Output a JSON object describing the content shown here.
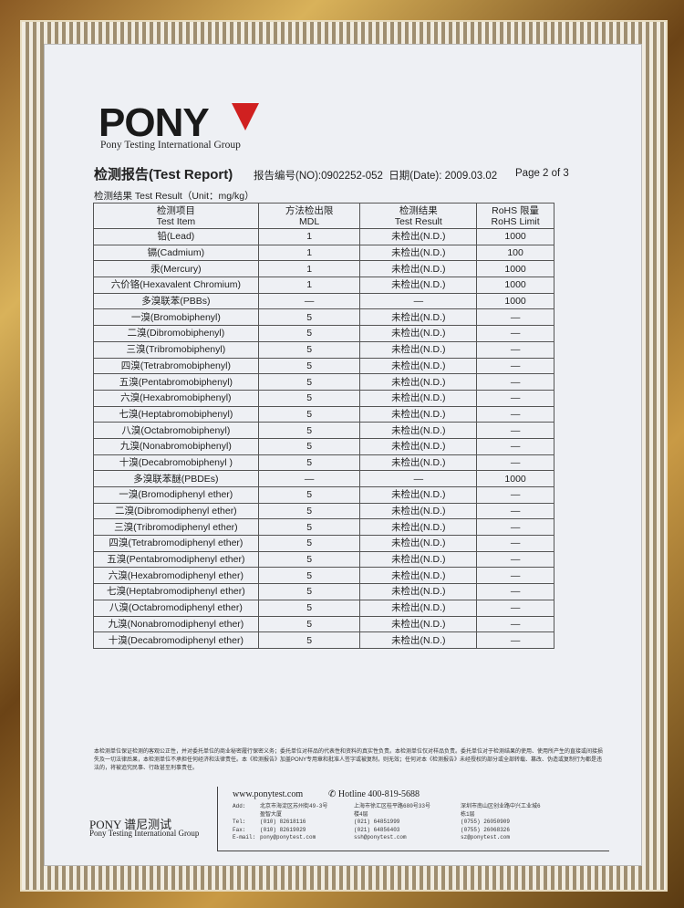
{
  "logo": {
    "text": "PONY",
    "subtitle": "Pony Testing International Group"
  },
  "header": {
    "title": "检测报告(Test Report)",
    "report_no": "报告编号(NO):0902252-052",
    "date": "日期(Date): 2009.03.02",
    "page": "Page 2 of 3"
  },
  "unit_label": "检测结果 Test Result（Unit：mg/kg）",
  "table": {
    "headers": [
      [
        "检测项目",
        "Test Item"
      ],
      [
        "方法检出限",
        "MDL"
      ],
      [
        "检测结果",
        "Test Result"
      ],
      [
        "RoHS 限量",
        "RoHS Limit"
      ]
    ],
    "rows": [
      [
        "铅(Lead)",
        "1",
        "未检出(N.D.)",
        "1000"
      ],
      [
        "镉(Cadmium)",
        "1",
        "未检出(N.D.)",
        "100"
      ],
      [
        "汞(Mercury)",
        "1",
        "未检出(N.D.)",
        "1000"
      ],
      [
        "六价铬(Hexavalent Chromium)",
        "1",
        "未检出(N.D.)",
        "1000"
      ],
      [
        "多溴联苯(PBBs)",
        "—",
        "—",
        "1000"
      ],
      [
        "一溴(Bromobiphenyl)",
        "5",
        "未检出(N.D.)",
        "—"
      ],
      [
        "二溴(Dibromobiphenyl)",
        "5",
        "未检出(N.D.)",
        "—"
      ],
      [
        "三溴(Tribromobiphenyl)",
        "5",
        "未检出(N.D.)",
        "—"
      ],
      [
        "四溴(Tetrabromobiphenyl)",
        "5",
        "未检出(N.D.)",
        "—"
      ],
      [
        "五溴(Pentabromobiphenyl)",
        "5",
        "未检出(N.D.)",
        "—"
      ],
      [
        "六溴(Hexabromobiphenyl)",
        "5",
        "未检出(N.D.)",
        "—"
      ],
      [
        "七溴(Heptabromobiphenyl)",
        "5",
        "未检出(N.D.)",
        "—"
      ],
      [
        "八溴(Octabromobiphenyl)",
        "5",
        "未检出(N.D.)",
        "—"
      ],
      [
        "九溴(Nonabromobiphenyl)",
        "5",
        "未检出(N.D.)",
        "—"
      ],
      [
        "十溴(Decabromobiphenyl )",
        "5",
        "未检出(N.D.)",
        "—"
      ],
      [
        "多溴联苯醚(PBDEs)",
        "—",
        "—",
        "1000"
      ],
      [
        "一溴(Bromodiphenyl ether)",
        "5",
        "未检出(N.D.)",
        "—"
      ],
      [
        "二溴(Dibromodiphenyl ether)",
        "5",
        "未检出(N.D.)",
        "—"
      ],
      [
        "三溴(Tribromodiphenyl ether)",
        "5",
        "未检出(N.D.)",
        "—"
      ],
      [
        "四溴(Tetrabromodiphenyl ether)",
        "5",
        "未检出(N.D.)",
        "—"
      ],
      [
        "五溴(Pentabromodiphenyl ether)",
        "5",
        "未检出(N.D.)",
        "—"
      ],
      [
        "六溴(Hexabromodiphenyl ether)",
        "5",
        "未检出(N.D.)",
        "—"
      ],
      [
        "七溴(Heptabromodiphenyl ether)",
        "5",
        "未检出(N.D.)",
        "—"
      ],
      [
        "八溴(Octabromodiphenyl ether)",
        "5",
        "未检出(N.D.)",
        "—"
      ],
      [
        "九溴(Nonabromodiphenyl ether)",
        "5",
        "未检出(N.D.)",
        "—"
      ],
      [
        "十溴(Decabromodiphenyl ether)",
        "5",
        "未检出(N.D.)",
        "—"
      ]
    ]
  },
  "disclaimer": "本检测单位保证检测的客观公正性，并对委托单位的商业秘密履行保密义务；委托单位对样品的代表性和资料的真实性负责。本检测单位仅对样品负责。委托单位对于检测结果的使用、使用所产生的直接或间接损失及一切法律后果，本检测单位不承担任何经济和法律责任。本《检测报告》加盖PONY专用章和批准人签字或被复制，则无效；任何对本《检测报告》未经授权的部分或全部转载、篡改、伪造或复制行为都是违法的，将被追究民事、行政甚至刑事责任。",
  "footer": {
    "logo": "PONY 谱尼测试",
    "logo_sub": "Pony Testing International Group",
    "website": "www.ponytest.com",
    "hotline": "Hotline 400-819-5688",
    "labels": "Add:\n\nTel:\nFax:\nE-mail:",
    "beijing": "北京市海淀区苏州街49-3号\n盈智大厦\n(010) 82618116\n(010) 82619029\npony@ponytest.com",
    "shanghai": "上海市徐汇区桂平路680号33号\n楼4层\n(021) 64851999\n(021) 64856403\nssh@ponytest.com",
    "shenzhen": "深圳市南山区创业路中兴工业城6\n栋1层\n(0755) 26050909\n(0755) 26068326\nsz@ponytest.com"
  }
}
